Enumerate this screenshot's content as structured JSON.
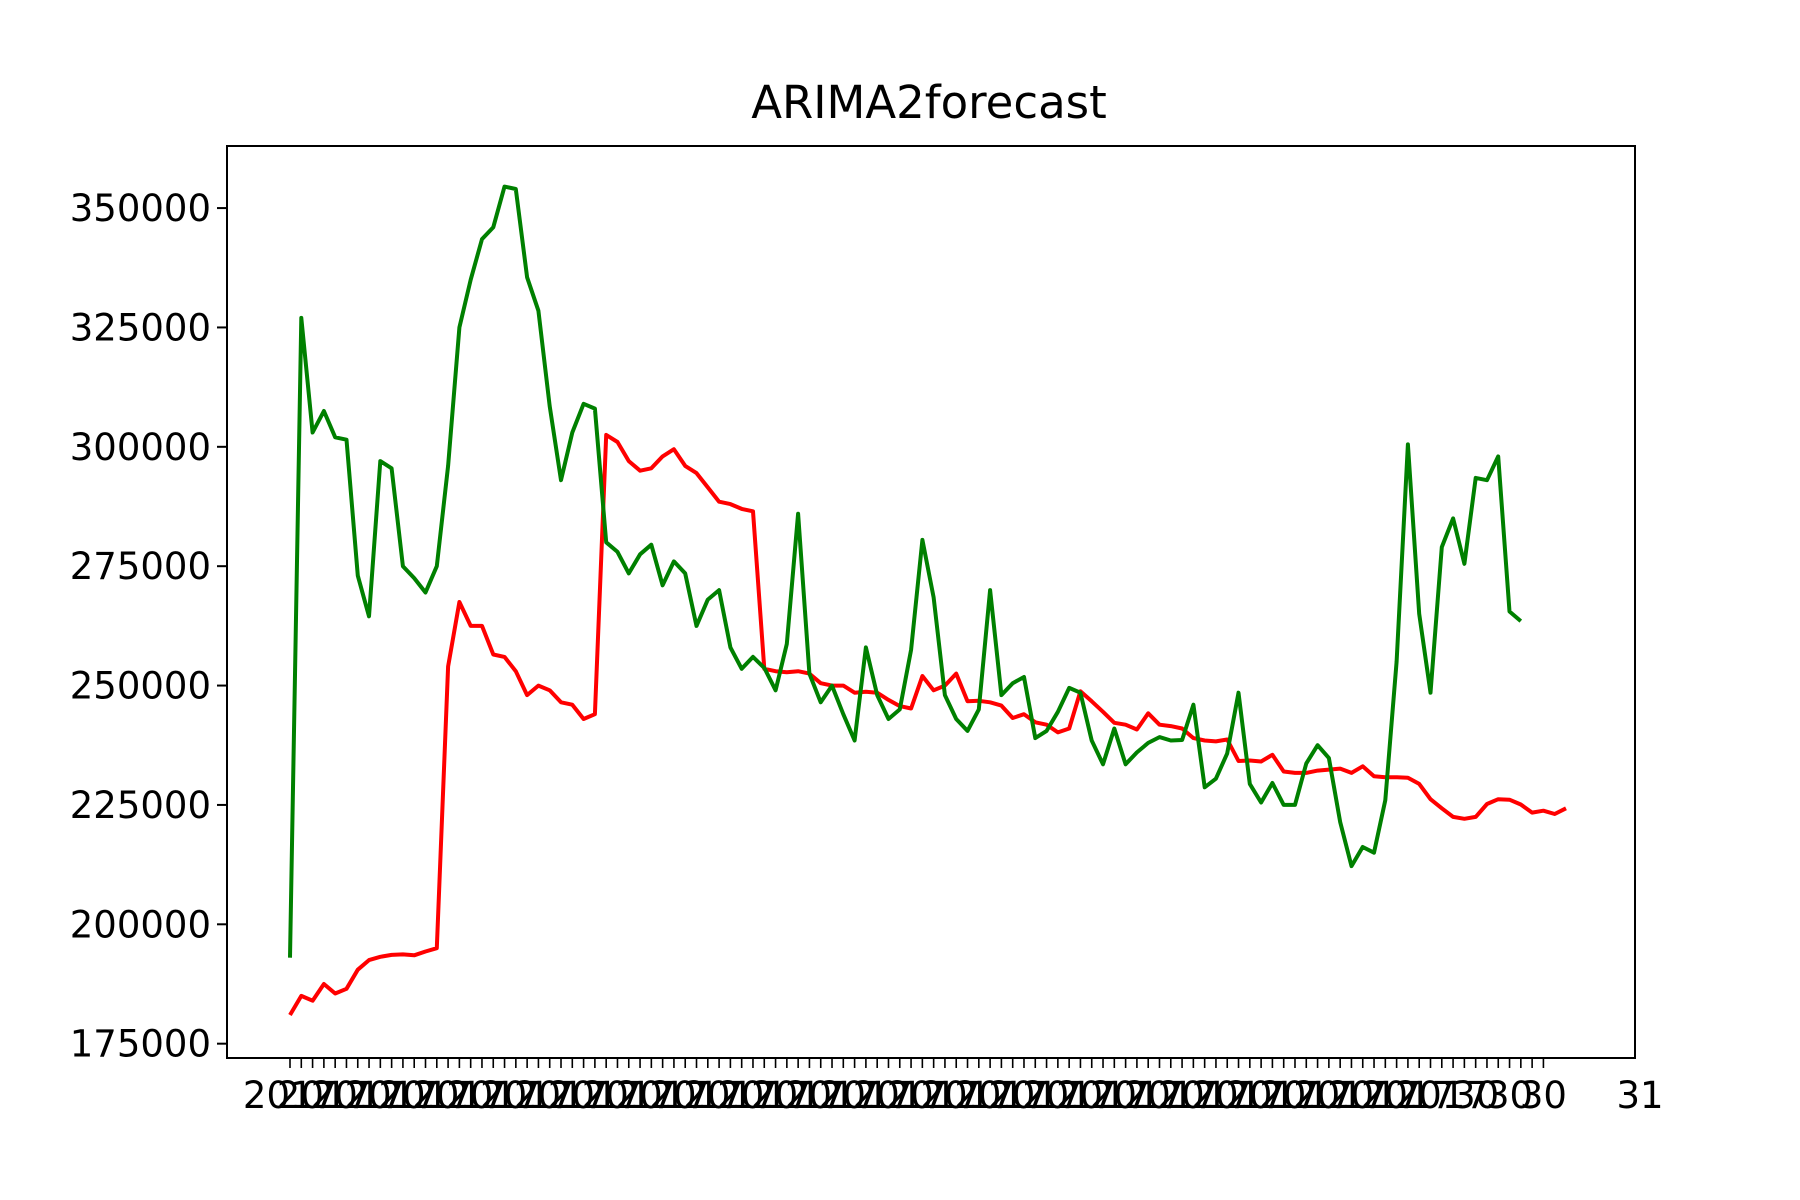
{
  "chart_data": {
    "type": "line",
    "title": "ARIMA2forecast",
    "xlabel": "",
    "ylabel": "",
    "ylim": [
      172000,
      363000
    ],
    "yticks": [
      175000,
      200000,
      225000,
      250000,
      275000,
      300000,
      325000,
      350000
    ],
    "x_tick_labels_note": "x tick labels are dense overlapping date strings ending in '2017' / '30' / '31'",
    "grid": false,
    "legend": "none",
    "colors": {
      "series_a": "#ff0000",
      "series_b": "#008000"
    },
    "series": [
      {
        "color": "#ff0000",
        "values": [
          181000,
          185000,
          184000,
          187500,
          185500,
          186500,
          190500,
          192500,
          193200,
          193600,
          193700,
          193500,
          194300,
          195000,
          254000,
          267500,
          262500,
          262500,
          256500,
          256000,
          253000,
          248000,
          250000,
          249000,
          246500,
          246000,
          243000,
          244000,
          302500,
          301000,
          297000,
          295000,
          295500,
          298000,
          299500,
          296000,
          294500,
          291500,
          288500,
          288000,
          287000,
          286500,
          253500,
          253000,
          252800,
          253000,
          252500,
          250500,
          250000,
          250000,
          248500,
          248700,
          248500,
          247000,
          245700,
          245200,
          252000,
          249000,
          250000,
          252500,
          246700,
          246800,
          246500,
          245800,
          243200,
          244000,
          242300,
          241800,
          240200,
          241000,
          248800,
          246700,
          244500,
          242200,
          241800,
          240800,
          244200,
          241800,
          241500,
          241000,
          239000,
          238500,
          238300,
          238700,
          234200,
          234300,
          234100,
          235500,
          232000,
          231700,
          231700,
          232200,
          232400,
          232600,
          231700,
          233100,
          231000,
          230800,
          230800,
          230700,
          229400,
          226200,
          224300,
          222500,
          222100,
          222500,
          225200,
          226200,
          226100,
          225100,
          223400,
          223800,
          223100,
          224300
        ]
      },
      {
        "color": "#008000",
        "values": [
          193000,
          327000,
          303000,
          307500,
          302000,
          301500,
          273000,
          264500,
          297000,
          295500,
          275000,
          272500,
          269500,
          275000,
          296000,
          325000,
          335000,
          343500,
          346000,
          354500,
          354000,
          335500,
          328500,
          308500,
          293000,
          303000,
          309000,
          308000,
          280000,
          278000,
          273500,
          277500,
          279500,
          271000,
          276000,
          273500,
          262500,
          268000,
          270000,
          258000,
          253500,
          256000,
          253700,
          249000,
          258700,
          286000,
          252500,
          246500,
          250000,
          244000,
          238500,
          258000,
          248000,
          243000,
          245000,
          257500,
          280500,
          268500,
          248000,
          243000,
          240500,
          245000,
          270000,
          248000,
          250500,
          251800,
          239000,
          240500,
          244500,
          249500,
          248500,
          238500,
          233500,
          241000,
          233500,
          236000,
          238000,
          239200,
          238500,
          238600,
          246000,
          228700,
          230500,
          235800,
          248500,
          229400,
          225500,
          229600,
          225000,
          225000,
          233700,
          237500,
          234800,
          221400,
          212200,
          216200,
          215000,
          226000,
          255000,
          300500,
          265000,
          248500,
          279000,
          285000,
          275500,
          293500,
          293000,
          298000,
          265500,
          263500
        ]
      }
    ]
  }
}
